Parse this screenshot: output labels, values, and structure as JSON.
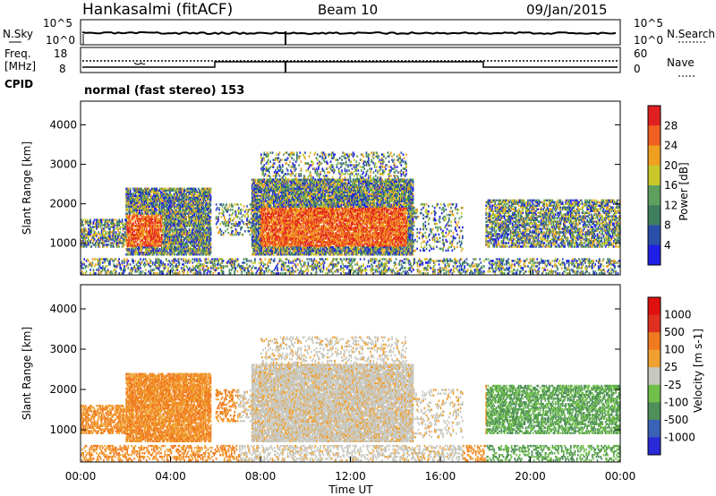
{
  "header": {
    "station": "Hankasalmi (fitACF)",
    "beam": "Beam 10",
    "date": "09/Jan/2015"
  },
  "strip_labels": {
    "nsky": "N.Sky",
    "nsearch": "N.Search",
    "noise_top": "10^5",
    "noise_bottom": "10^0",
    "noise_top_right": "10^5",
    "noise_bottom_right": "10^0",
    "freq": "Freq.",
    "freq_unit": "[MHz]",
    "freq_top": "18",
    "freq_bottom": "8",
    "nave": "Nave",
    "nave_top": "60",
    "nave_bottom": "0",
    "cpid": "CPID",
    "cpid_value": "normal (fast stereo) 153"
  },
  "colors": {
    "power": [
      "#1f1fe6",
      "#2a4fa8",
      "#3f7f5f",
      "#5fa05f",
      "#c8c82a",
      "#f0a020",
      "#f06020",
      "#e02020"
    ],
    "velocity": [
      "#2a2ad8",
      "#3a62b8",
      "#4f8f5a",
      "#6fbf4a",
      "#c8c8c0",
      "#f0a030",
      "#f07a20",
      "#e03020",
      "#e01010"
    ]
  },
  "chart_data": [
    {
      "type": "heatmap",
      "title": "",
      "xlabel": "",
      "ylabel": "Slant Range [km]",
      "x_ticks": [
        "00:00",
        "04:00",
        "08:00",
        "12:00",
        "16:00",
        "20:00",
        "00:00"
      ],
      "y_ticks": [
        "1000",
        "2000",
        "3000",
        "4000"
      ],
      "ylim": [
        200,
        4600
      ],
      "colorbar": {
        "label": "Power [dB]",
        "ticks": [
          "4",
          "8",
          "12",
          "16",
          "20",
          "24",
          "28"
        ]
      }
    },
    {
      "type": "heatmap",
      "title": "",
      "xlabel": "Time UT",
      "ylabel": "Slant Range [km]",
      "x_ticks": [
        "00:00",
        "04:00",
        "08:00",
        "12:00",
        "16:00",
        "20:00",
        "00:00"
      ],
      "y_ticks": [
        "1000",
        "2000",
        "3000",
        "4000"
      ],
      "ylim": [
        200,
        4600
      ],
      "colorbar": {
        "label": "Velocity [m s-1]",
        "ticks": [
          "1000",
          "500",
          "100",
          "25",
          "-25",
          "-100",
          "-500",
          "-1000"
        ]
      }
    }
  ]
}
